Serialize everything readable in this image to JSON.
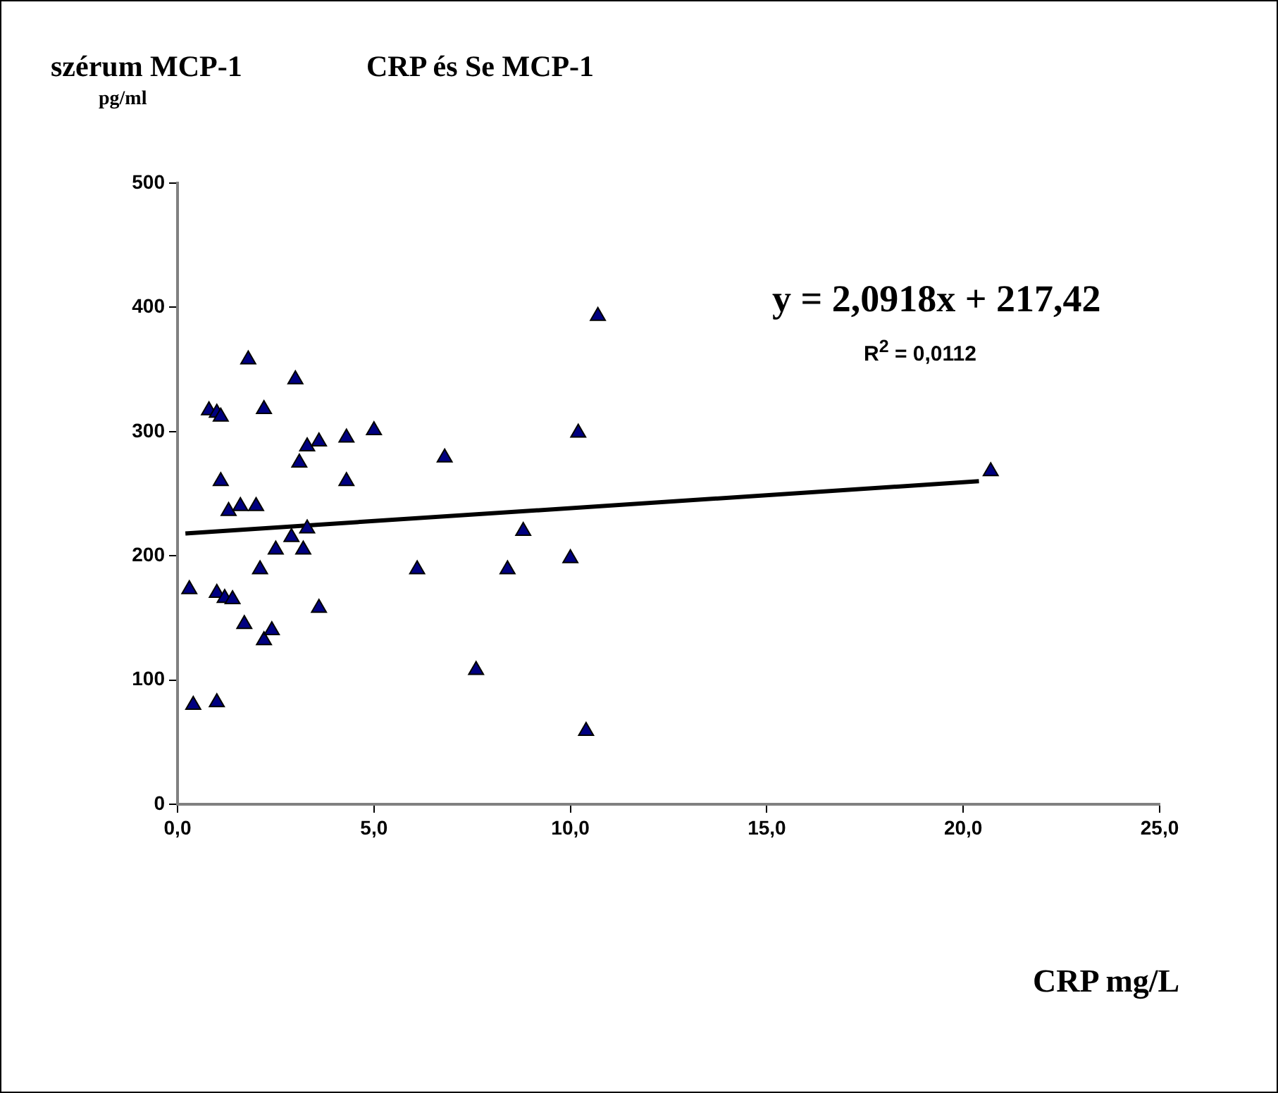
{
  "chart_data": {
    "type": "scatter",
    "title": "CRP és Se MCP-1",
    "ylabel": "szérum MCP-1",
    "xlabel": "CRP mg/L",
    "annotations": [
      "pg/ml",
      "y = 2,0918x + 217,42",
      "R$^{2}$ = 0,0112"
    ],
    "x": [
      0.3,
      0.4,
      0.8,
      1.0,
      1.0,
      1.0,
      1.1,
      1.1,
      1.2,
      1.3,
      1.4,
      1.6,
      1.7,
      1.8,
      2.0,
      2.1,
      2.2,
      2.2,
      2.4,
      2.5,
      2.9,
      3.0,
      3.1,
      3.2,
      3.3,
      3.3,
      3.6,
      3.6,
      4.3,
      4.3,
      5.0,
      6.1,
      6.8,
      7.6,
      8.4,
      8.8,
      10.0,
      10.2,
      10.4,
      10.7,
      20.7
    ],
    "series": [
      {
        "color": "#000080",
        "marker": "triangle",
        "values": [
          173,
          80,
          317,
          170,
          82,
          315,
          312,
          260,
          166,
          236,
          165,
          240,
          145,
          358,
          240,
          189,
          132,
          318,
          140,
          205,
          215,
          342,
          275,
          205,
          288,
          222,
          158,
          292,
          295,
          260,
          301,
          189,
          279,
          108,
          189,
          220,
          198,
          299,
          59,
          393,
          268
        ]
      },
      {
        "type": "line",
        "color": "#000000",
        "marker": "none",
        "x": [
          0.2,
          20.4
        ],
        "values": [
          218,
          260
        ]
      }
    ],
    "xlim": [
      0,
      25
    ],
    "xticks": [
      {
        "value": 0,
        "label": "0,0"
      },
      {
        "value": 5,
        "label": "5,0"
      },
      {
        "value": 10,
        "label": "10,0"
      },
      {
        "value": 15,
        "label": "15,0"
      },
      {
        "value": 20,
        "label": "20,0"
      },
      {
        "value": 25,
        "label": "25,0"
      }
    ],
    "ylim": [
      0,
      500
    ],
    "yticks": [
      0,
      100,
      200,
      300,
      400,
      500
    ],
    "grid": false,
    "legend": false
  }
}
